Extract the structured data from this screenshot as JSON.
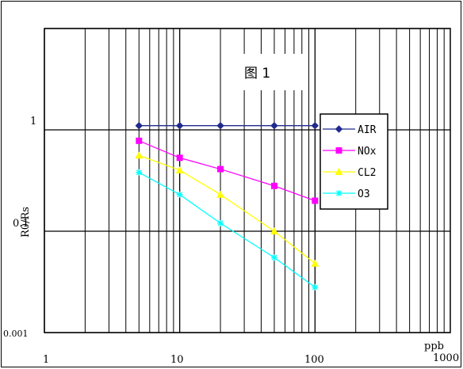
{
  "chart_data": {
    "type": "line",
    "title": "图 1",
    "xlabel": "ppb",
    "ylabel": "R0/Rs",
    "xscale": "log",
    "yscale": "log",
    "xlim": [
      1,
      1000
    ],
    "ylim": [
      0.01,
      10
    ],
    "x_tick_labels": [
      "1",
      "10",
      "100",
      "1000"
    ],
    "y_tick_labels": [
      "1",
      "0.1",
      "0.001"
    ],
    "grid": true,
    "legend_position": "right",
    "series": [
      {
        "name": "AIR",
        "color": "#1f2a8c",
        "marker": "diamond",
        "x": [
          5,
          10,
          20,
          50,
          100
        ],
        "y": [
          1.1,
          1.1,
          1.1,
          1.1,
          1.1
        ]
      },
      {
        "name": "NOx",
        "color": "#ff00ff",
        "marker": "square",
        "x": [
          5,
          10,
          20,
          50,
          100
        ],
        "y": [
          0.78,
          0.53,
          0.41,
          0.28,
          0.2
        ]
      },
      {
        "name": "CL2",
        "color": "#ffff00",
        "marker": "triangle",
        "x": [
          5,
          10,
          20,
          50,
          100
        ],
        "y": [
          0.56,
          0.4,
          0.23,
          0.1,
          0.048
        ]
      },
      {
        "name": "O3",
        "color": "#00ffff",
        "marker": "star",
        "x": [
          5,
          10,
          20,
          50,
          100
        ],
        "y": [
          0.38,
          0.23,
          0.12,
          0.055,
          0.028
        ]
      }
    ]
  }
}
